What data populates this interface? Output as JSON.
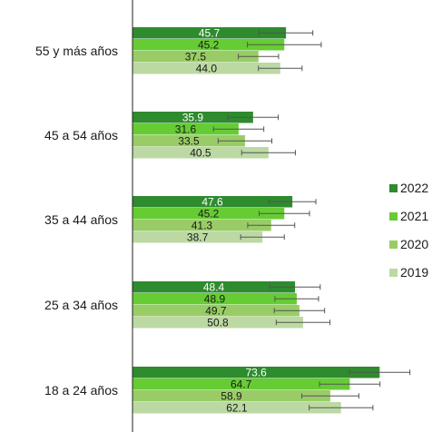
{
  "chart_data": {
    "type": "bar",
    "orientation": "horizontal",
    "categories": [
      "55 y más años",
      "45 a 54 años",
      "35 a 44 años",
      "25 a 34 años",
      "18 a 24 años"
    ],
    "series": [
      {
        "name": "2022",
        "color": "#2e8b2e",
        "values": [
          45.7,
          35.9,
          47.6,
          48.4,
          73.6
        ],
        "errors": [
          8.0,
          7.5,
          7.0,
          7.5,
          9.0
        ]
      },
      {
        "name": "2021",
        "color": "#66cc33",
        "values": [
          45.2,
          31.6,
          45.2,
          48.9,
          64.7
        ],
        "errors": [
          11.0,
          7.5,
          7.5,
          6.5,
          9.0
        ]
      },
      {
        "name": "2020",
        "color": "#99cc66",
        "values": [
          37.5,
          33.5,
          41.3,
          49.7,
          58.9
        ],
        "errors": [
          6.0,
          8.0,
          7.0,
          7.5,
          8.5
        ]
      },
      {
        "name": "2019",
        "color": "#bcd9a3",
        "values": [
          44.0,
          40.5,
          38.7,
          50.8,
          62.1
        ],
        "errors": [
          6.5,
          8.0,
          6.5,
          8.0,
          9.5
        ]
      }
    ],
    "value_labels": {
      "2022": [
        "45.7",
        "35.9",
        "47.6",
        "48.4",
        "73.6"
      ],
      "2021": [
        "45.2",
        "31.6",
        "45.2",
        "48.9",
        "64.7"
      ],
      "2020": [
        "37.5",
        "33.5",
        "41.3",
        "49.7",
        "58.9"
      ],
      "2019": [
        "44.0",
        "40.5",
        "38.7",
        "50.8",
        "62.1"
      ]
    },
    "xlim": [
      0,
      90
    ],
    "grid": false,
    "legend_position": "right"
  }
}
